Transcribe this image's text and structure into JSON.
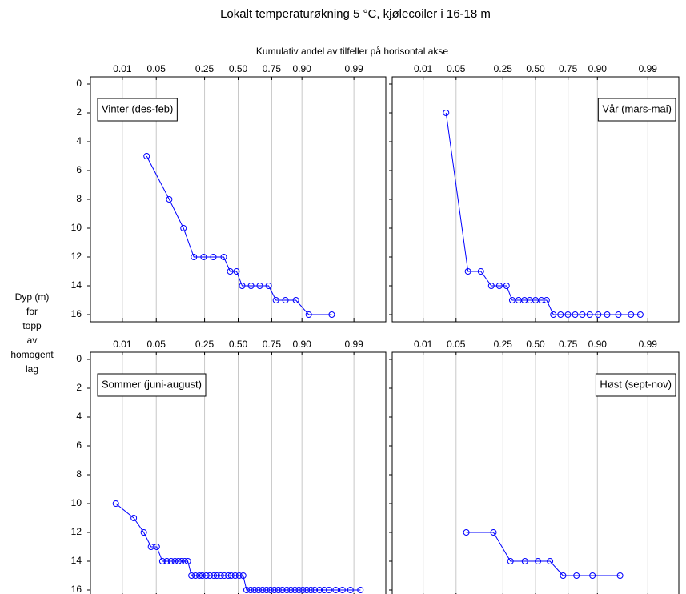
{
  "title": "Lokalt temperaturøkning 5 °C, kjølecoiler i 16-18 m",
  "subtitle": "Kumulativ andel av tilfeller på horisontal akse",
  "ylabel_lines": [
    "Dyp (m)",
    "for",
    "topp",
    "av",
    "homogent",
    "lag"
  ],
  "chart_data": [
    {
      "type": "line",
      "label": "Vinter (des-feb)",
      "label_corner": "upper left",
      "color": "#0000ff",
      "xscale": "normal_probability",
      "xlim": [
        0.0015,
        0.9985
      ],
      "xticks": [
        0.01,
        0.05,
        0.25,
        {
          "value": 0.5,
          "label": "0.50"
        },
        0.75,
        {
          "value": 0.9,
          "label": "0.90"
        },
        0.99
      ],
      "ylim": [
        -0.5,
        16.5
      ],
      "y_inverted": true,
      "yticks": [
        0,
        2,
        4,
        6,
        8,
        10,
        12,
        14,
        16
      ],
      "show_yticklabels": true,
      "grid": true,
      "x": [
        0.033,
        0.083,
        0.136,
        0.187,
        0.244,
        0.309,
        0.386,
        0.436,
        0.487,
        0.532,
        0.602,
        0.668,
        0.73,
        0.776,
        0.829,
        0.877,
        0.922,
        0.97
      ],
      "y": [
        5,
        8,
        10,
        12,
        12,
        12,
        12,
        13,
        13,
        14,
        14,
        14,
        14,
        15,
        15,
        15,
        16,
        16
      ]
    },
    {
      "type": "line",
      "label": "Vår (mars-mai)",
      "label_corner": "upper right",
      "color": "#0000ff",
      "xscale": "normal_probability",
      "xlim": [
        0.0015,
        0.9985
      ],
      "xticks": [
        0.01,
        0.05,
        0.25,
        {
          "value": 0.5,
          "label": "0.50"
        },
        0.75,
        {
          "value": 0.9,
          "label": "0.90"
        },
        0.99
      ],
      "ylim": [
        -0.5,
        16.5
      ],
      "y_inverted": true,
      "yticks": [
        0,
        2,
        4,
        6,
        8,
        10,
        12,
        14,
        16
      ],
      "show_yticklabels": false,
      "grid": true,
      "x": [
        0.032,
        0.081,
        0.129,
        0.18,
        0.227,
        0.274,
        0.315,
        0.363,
        0.409,
        0.452,
        0.5,
        0.548,
        0.591,
        0.644,
        0.698,
        0.749,
        0.794,
        0.834,
        0.869,
        0.903,
        0.931,
        0.957,
        0.976,
        0.985
      ],
      "y": [
        2,
        13,
        13,
        14,
        14,
        14,
        15,
        15,
        15,
        15,
        15,
        15,
        15,
        16,
        16,
        16,
        16,
        16,
        16,
        16,
        16,
        16,
        16,
        16
      ]
    },
    {
      "type": "line",
      "label": "Sommer (juni-august)",
      "label_corner": "upper left",
      "color": "#0000ff",
      "xscale": "normal_probability",
      "xlim": [
        0.0015,
        0.9985
      ],
      "xticks": [
        0.01,
        0.05,
        0.25,
        {
          "value": 0.5,
          "label": "0.50"
        },
        0.75,
        {
          "value": 0.9,
          "label": "0.90"
        },
        0.99
      ],
      "ylim": [
        -0.5,
        16.5
      ],
      "y_inverted": true,
      "yticks": [
        0,
        2,
        4,
        6,
        8,
        10,
        12,
        14,
        16
      ],
      "show_yticklabels": true,
      "grid": true,
      "x": [
        0.007,
        0.018,
        0.029,
        0.04,
        0.051,
        0.064,
        0.076,
        0.089,
        0.102,
        0.115,
        0.127,
        0.142,
        0.156,
        0.174,
        0.195,
        0.218,
        0.236,
        0.261,
        0.284,
        0.312,
        0.334,
        0.363,
        0.39,
        0.421,
        0.444,
        0.476,
        0.508,
        0.54,
        0.567,
        0.599,
        0.629,
        0.659,
        0.688,
        0.716,
        0.742,
        0.767,
        0.791,
        0.813,
        0.836,
        0.855,
        0.873,
        0.889,
        0.903,
        0.916,
        0.928,
        0.938,
        0.949,
        0.958,
        0.966,
        0.975,
        0.982,
        0.988,
        0.993
      ],
      "y": [
        10,
        11,
        12,
        13,
        13,
        14,
        14,
        14,
        14,
        14,
        14,
        14,
        14,
        15,
        15,
        15,
        15,
        15,
        15,
        15,
        15,
        15,
        15,
        15,
        15,
        15,
        15,
        15,
        16,
        16,
        16,
        16,
        16,
        16,
        16,
        16,
        16,
        16,
        16,
        16,
        16,
        16,
        16,
        16,
        16,
        16,
        16,
        16,
        16,
        16,
        16,
        16,
        16
      ]
    },
    {
      "type": "line",
      "label": "Høst (sept-nov)",
      "label_corner": "upper right",
      "color": "#0000ff",
      "xscale": "normal_probability",
      "xlim": [
        0.0015,
        0.9985
      ],
      "xticks": [
        0.01,
        0.05,
        0.25,
        {
          "value": 0.5,
          "label": "0.50"
        },
        0.75,
        {
          "value": 0.9,
          "label": "0.90"
        },
        0.99
      ],
      "ylim": [
        -0.5,
        16.5
      ],
      "y_inverted": true,
      "yticks": [
        0,
        2,
        4,
        6,
        8,
        10,
        12,
        14,
        16
      ],
      "show_yticklabels": false,
      "grid": true,
      "x": [
        0.076,
        0.192,
        0.302,
        0.413,
        0.52,
        0.618,
        0.716,
        0.802,
        0.881,
        0.96
      ],
      "y": [
        12,
        12,
        14,
        14,
        14,
        14,
        15,
        15,
        15,
        15
      ]
    }
  ]
}
